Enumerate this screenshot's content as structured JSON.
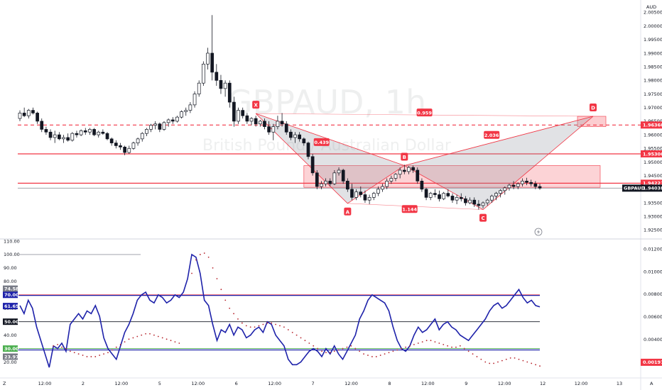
{
  "chart_data": [
    {
      "type": "candlestick",
      "watermark_symbol": "GBPAUD, 1h",
      "watermark_name": "British Pound / Australian Dollar",
      "currency": "AUD",
      "y_range": [
        1.9225,
        2.0085
      ],
      "y_ticks": [
        "2.00500",
        "2.00000",
        "1.99500",
        "1.99000",
        "1.98500",
        "1.98000",
        "1.97500",
        "1.97000",
        "1.96500",
        "1.96000",
        "1.95500",
        "1.95000",
        "1.94500",
        "1.94000",
        "1.93500",
        "1.93000",
        "1.92500"
      ],
      "x_labels": [
        "12:00",
        "2",
        "12:00",
        "5",
        "12:00",
        "6",
        "12:00",
        "7",
        "12:00",
        "8",
        "12:00",
        "9",
        "12:00",
        "12",
        "12:00",
        "13"
      ],
      "x_corner_left": "Z",
      "x_corner_right": "A",
      "price_tags": [
        {
          "label": "1.96360",
          "value": 1.9636,
          "color": "#f23645"
        },
        {
          "label": "1.95300",
          "value": 1.953,
          "color": "#f23645"
        },
        {
          "label": "1.94221",
          "value": 1.9422,
          "color": "#f23645"
        },
        {
          "label": "1.94038",
          "value": 1.9404,
          "color": "#131722"
        }
      ],
      "symbol_tag": "GBPAUD",
      "pattern_points": [
        {
          "label": "X",
          "value": 1.9678
        },
        {
          "label": "A",
          "value": 1.9348
        },
        {
          "label": "B",
          "value": 1.9487
        },
        {
          "label": "C",
          "value": 1.9325
        },
        {
          "label": "D",
          "value": 1.9668
        }
      ],
      "pattern_ratios": [
        "0.959",
        "0.439",
        "2.036",
        "1.144"
      ],
      "ohlc": [
        [
          1.966,
          1.969,
          1.965,
          1.968
        ],
        [
          1.968,
          1.97,
          1.9665,
          1.967
        ],
        [
          1.967,
          1.9695,
          1.966,
          1.969
        ],
        [
          1.969,
          1.97,
          1.9675,
          1.968
        ],
        [
          1.968,
          1.9685,
          1.964,
          1.965
        ],
        [
          1.965,
          1.966,
          1.961,
          1.962
        ],
        [
          1.962,
          1.963,
          1.96,
          1.961
        ],
        [
          1.961,
          1.962,
          1.958,
          1.959
        ],
        [
          1.959,
          1.9615,
          1.957,
          1.96
        ],
        [
          1.96,
          1.961,
          1.958,
          1.9585
        ],
        [
          1.9585,
          1.96,
          1.957,
          1.959
        ],
        [
          1.959,
          1.9605,
          1.9575,
          1.958
        ],
        [
          1.958,
          1.961,
          1.9575,
          1.9605
        ],
        [
          1.9605,
          1.9615,
          1.959,
          1.96
        ],
        [
          1.96,
          1.962,
          1.9595,
          1.9615
        ],
        [
          1.9615,
          1.9625,
          1.96,
          1.961
        ],
        [
          1.961,
          1.9625,
          1.96,
          1.962
        ],
        [
          1.962,
          1.9625,
          1.9595,
          1.96
        ],
        [
          1.96,
          1.9615,
          1.959,
          1.961
        ],
        [
          1.961,
          1.962,
          1.96,
          1.9605
        ],
        [
          1.9605,
          1.961,
          1.958,
          1.9585
        ],
        [
          1.9585,
          1.959,
          1.956,
          1.957
        ],
        [
          1.957,
          1.958,
          1.955,
          1.956
        ],
        [
          1.956,
          1.957,
          1.9545,
          1.9555
        ],
        [
          1.9555,
          1.956,
          1.9525,
          1.9535
        ],
        [
          1.9535,
          1.956,
          1.953,
          1.955
        ],
        [
          1.955,
          1.9575,
          1.9545,
          1.957
        ],
        [
          1.957,
          1.959,
          1.956,
          1.9585
        ],
        [
          1.9585,
          1.961,
          1.9575,
          1.9605
        ],
        [
          1.9605,
          1.9625,
          1.9595,
          1.962
        ],
        [
          1.962,
          1.964,
          1.961,
          1.9635
        ],
        [
          1.9635,
          1.965,
          1.962,
          1.964
        ],
        [
          1.964,
          1.9645,
          1.961,
          1.962
        ],
        [
          1.962,
          1.965,
          1.9615,
          1.9645
        ],
        [
          1.9645,
          1.966,
          1.963,
          1.9655
        ],
        [
          1.9655,
          1.9665,
          1.964,
          1.965
        ],
        [
          1.965,
          1.967,
          1.9645,
          1.9665
        ],
        [
          1.9665,
          1.969,
          1.966,
          1.9685
        ],
        [
          1.9685,
          1.97,
          1.967,
          1.969
        ],
        [
          1.969,
          1.972,
          1.968,
          1.971
        ],
        [
          1.971,
          1.976,
          1.97,
          1.975
        ],
        [
          1.975,
          1.98,
          1.974,
          1.979
        ],
        [
          1.979,
          1.987,
          1.978,
          1.986
        ],
        [
          1.986,
          1.992,
          1.984,
          1.99
        ],
        [
          1.99,
          2.004,
          1.98,
          1.983
        ],
        [
          1.983,
          1.986,
          1.978,
          1.98
        ],
        [
          1.98,
          1.982,
          1.975,
          1.977
        ],
        [
          1.977,
          1.98,
          1.974,
          1.979
        ],
        [
          1.979,
          1.98,
          1.97,
          1.972
        ],
        [
          1.972,
          1.974,
          1.963,
          1.965
        ],
        [
          1.965,
          1.97,
          1.964,
          1.969
        ],
        [
          1.969,
          1.97,
          1.966,
          1.967
        ],
        [
          1.967,
          1.968,
          1.964,
          1.965
        ],
        [
          1.965,
          1.9665,
          1.9635,
          1.966
        ],
        [
          1.966,
          1.967,
          1.963,
          1.964
        ],
        [
          1.964,
          1.9655,
          1.963,
          1.965
        ],
        [
          1.965,
          1.966,
          1.962,
          1.963
        ],
        [
          1.963,
          1.965,
          1.96,
          1.961
        ],
        [
          1.961,
          1.964,
          1.958,
          1.963
        ],
        [
          1.963,
          1.967,
          1.962,
          1.965
        ],
        [
          1.965,
          1.968,
          1.963,
          1.964
        ],
        [
          1.964,
          1.965,
          1.96,
          1.961
        ],
        [
          1.961,
          1.962,
          1.958,
          1.959
        ],
        [
          1.959,
          1.961,
          1.957,
          1.96
        ],
        [
          1.96,
          1.961,
          1.9575,
          1.9585
        ],
        [
          1.9585,
          1.959,
          1.956,
          1.957
        ],
        [
          1.957,
          1.9575,
          1.951,
          1.952
        ],
        [
          1.952,
          1.953,
          1.945,
          1.946
        ],
        [
          1.946,
          1.947,
          1.94,
          1.941
        ],
        [
          1.941,
          1.943,
          1.94,
          1.942
        ],
        [
          1.942,
          1.944,
          1.941,
          1.943
        ],
        [
          1.943,
          1.944,
          1.941,
          1.942
        ],
        [
          1.942,
          1.947,
          1.9415,
          1.946
        ],
        [
          1.946,
          1.948,
          1.945,
          1.947
        ],
        [
          1.947,
          1.9475,
          1.942,
          1.943
        ],
        [
          1.943,
          1.944,
          1.939,
          1.94
        ],
        [
          1.94,
          1.942,
          1.936,
          1.937
        ],
        [
          1.937,
          1.94,
          1.936,
          1.939
        ],
        [
          1.939,
          1.941,
          1.937,
          1.938
        ],
        [
          1.938,
          1.9395,
          1.935,
          1.936
        ],
        [
          1.936,
          1.938,
          1.9345,
          1.937
        ],
        [
          1.937,
          1.939,
          1.936,
          1.9385
        ],
        [
          1.9385,
          1.941,
          1.9375,
          1.94
        ],
        [
          1.94,
          1.942,
          1.939,
          1.941
        ],
        [
          1.941,
          1.944,
          1.94,
          1.943
        ],
        [
          1.943,
          1.945,
          1.942,
          1.944
        ],
        [
          1.944,
          1.946,
          1.943,
          1.9455
        ],
        [
          1.9455,
          1.948,
          1.944,
          1.947
        ],
        [
          1.947,
          1.949,
          1.9455,
          1.9465
        ],
        [
          1.9465,
          1.9485,
          1.9455,
          1.948
        ],
        [
          1.948,
          1.9487,
          1.946,
          1.947
        ],
        [
          1.947,
          1.948,
          1.942,
          1.943
        ],
        [
          1.943,
          1.944,
          1.939,
          1.94
        ],
        [
          1.94,
          1.9405,
          1.936,
          1.937
        ],
        [
          1.937,
          1.939,
          1.936,
          1.9385
        ],
        [
          1.9385,
          1.94,
          1.937,
          1.938
        ],
        [
          1.938,
          1.9395,
          1.9355,
          1.9365
        ],
        [
          1.9365,
          1.939,
          1.936,
          1.9385
        ],
        [
          1.9385,
          1.94,
          1.937,
          1.9375
        ],
        [
          1.9375,
          1.9385,
          1.935,
          1.936
        ],
        [
          1.936,
          1.938,
          1.9345,
          1.937
        ],
        [
          1.937,
          1.9385,
          1.9355,
          1.9365
        ],
        [
          1.9365,
          1.9375,
          1.934,
          1.935
        ],
        [
          1.935,
          1.937,
          1.9345,
          1.936
        ],
        [
          1.936,
          1.937,
          1.9335,
          1.9345
        ],
        [
          1.9345,
          1.936,
          1.9325,
          1.934
        ],
        [
          1.934,
          1.9355,
          1.933,
          1.935
        ],
        [
          1.935,
          1.9365,
          1.934,
          1.936
        ],
        [
          1.936,
          1.938,
          1.935,
          1.9375
        ],
        [
          1.9375,
          1.939,
          1.936,
          1.9385
        ],
        [
          1.9385,
          1.94,
          1.937,
          1.9395
        ],
        [
          1.9395,
          1.941,
          1.938,
          1.9405
        ],
        [
          1.9405,
          1.942,
          1.9395,
          1.9415
        ],
        [
          1.9415,
          1.943,
          1.94,
          1.941
        ],
        [
          1.941,
          1.9425,
          1.94,
          1.942
        ],
        [
          1.942,
          1.944,
          1.941,
          1.943
        ],
        [
          1.943,
          1.9442,
          1.9415,
          1.9425
        ],
        [
          1.9425,
          1.9435,
          1.941,
          1.942
        ],
        [
          1.942,
          1.943,
          1.94,
          1.941
        ],
        [
          1.941,
          1.942,
          1.9398,
          1.9404
        ]
      ]
    },
    {
      "type": "line",
      "title": "",
      "y_range": [
        15,
        110
      ],
      "y_ticks": [
        "110.00",
        "100.00",
        "90.00",
        "80.00",
        "60.00",
        "40.00",
        "20.00"
      ],
      "right_ticks": [
        "0.01200",
        "0.01000",
        "0.00800",
        "0.00600",
        "0.00400"
      ],
      "right_range": [
        0.0014,
        0.0127
      ],
      "level_tags": [
        {
          "label": "74.58",
          "value": 74.58,
          "color": "#787b86"
        },
        {
          "label": "70.00",
          "value": 70.0,
          "color": "#1e22aa"
        },
        {
          "label": "61.65",
          "value": 61.65,
          "color": "#1e22aa"
        },
        {
          "label": "50.00",
          "value": 50.0,
          "color": "#131722"
        },
        {
          "label": "30.00",
          "value": 30.0,
          "color": "#4caf50"
        },
        {
          "label": "23.97",
          "value": 23.97,
          "color": "#787b86"
        }
      ],
      "right_tag": {
        "label": "0.00197",
        "value": 0.00197,
        "color": "#f23645"
      },
      "levels": [
        {
          "value": 70,
          "color": "#f23645"
        },
        {
          "value": 70,
          "color": "#1e22aa"
        },
        {
          "value": 50,
          "color": "#131722"
        },
        {
          "value": 30,
          "color": "#4caf50"
        },
        {
          "value": 29,
          "color": "#1e22aa"
        }
      ],
      "series": [
        {
          "kind": "line",
          "color": "#1e22aa",
          "values": [
            62,
            56,
            66,
            60,
            46,
            36,
            26,
            16,
            32,
            30,
            34,
            28,
            48,
            52,
            56,
            52,
            58,
            56,
            62,
            54,
            38,
            30,
            26,
            22,
            32,
            42,
            48,
            56,
            66,
            70,
            72,
            66,
            64,
            70,
            68,
            64,
            66,
            70,
            68,
            72,
            82,
            100,
            98,
            86,
            66,
            62,
            48,
            36,
            44,
            42,
            48,
            40,
            46,
            44,
            38,
            40,
            44,
            46,
            42,
            50,
            48,
            40,
            36,
            32,
            22,
            18,
            18,
            20,
            24,
            28,
            30,
            28,
            24,
            30,
            26,
            32,
            26,
            22,
            28,
            34,
            40,
            52,
            58,
            66,
            70,
            68,
            66,
            64,
            58,
            46,
            36,
            30,
            28,
            32,
            40,
            46,
            42,
            44,
            48,
            52,
            44,
            48,
            50,
            46,
            44,
            40,
            38,
            36,
            40,
            44,
            48,
            52,
            58,
            62,
            64,
            60,
            62,
            66,
            70,
            74,
            68,
            64,
            66,
            62,
            61
          ]
        },
        {
          "kind": "dots",
          "color": "#b7242c",
          "values": [
            null,
            null,
            null,
            null,
            null,
            null,
            null,
            null,
            32,
            33,
            31,
            30,
            28,
            27,
            26,
            25,
            24,
            24,
            24,
            25,
            26,
            27,
            29,
            31,
            33,
            35,
            37,
            38,
            39,
            40,
            41,
            41,
            40,
            39,
            38,
            37,
            36,
            35,
            34,
            null,
            null,
            86,
            96,
            100,
            101,
            98,
            90,
            82,
            74,
            66,
            60,
            56,
            52,
            49,
            47,
            46,
            46,
            47,
            48,
            49,
            49,
            48,
            47,
            46,
            44,
            42,
            40,
            38,
            36,
            34,
            32,
            30,
            28,
            27,
            27,
            28,
            29,
            30,
            31,
            32,
            30,
            28,
            26,
            25,
            24,
            24,
            25,
            26,
            27,
            28,
            29,
            30,
            31,
            32,
            33,
            34,
            35,
            36,
            36,
            35,
            34,
            33,
            32,
            31,
            31,
            32,
            30,
            28,
            26,
            24,
            22,
            20,
            19,
            19,
            20,
            21,
            22,
            23,
            23,
            22,
            21,
            20,
            19,
            18,
            17
          ]
        }
      ]
    }
  ]
}
